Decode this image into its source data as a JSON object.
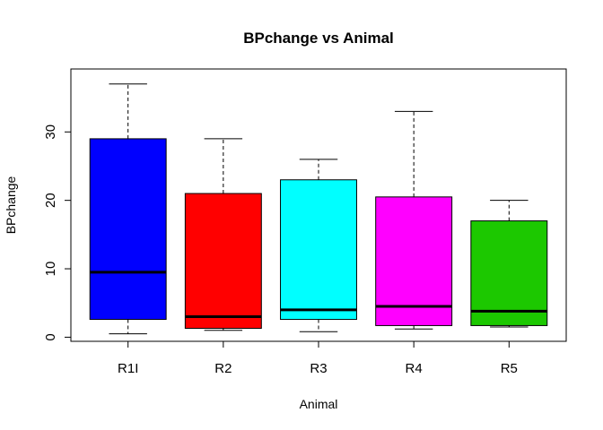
{
  "chart_data": {
    "type": "box",
    "title": "BPchange vs Animal",
    "xlabel": "Animal",
    "ylabel": "BPchange",
    "ylim": [
      -0.6,
      39.2
    ],
    "yticks": [
      0,
      10,
      20,
      30
    ],
    "categories": [
      "R1I",
      "R2",
      "R3",
      "R4",
      "R5"
    ],
    "boxes": [
      {
        "category": "R1I",
        "min": 0.5,
        "q1": 2.6,
        "median": 9.5,
        "q3": 29.0,
        "max": 37.0,
        "color": "#0000FF"
      },
      {
        "category": "R2",
        "min": 1.0,
        "q1": 1.3,
        "median": 3.0,
        "q3": 21.0,
        "max": 29.0,
        "color": "#FF0000"
      },
      {
        "category": "R3",
        "min": 0.8,
        "q1": 2.6,
        "median": 4.0,
        "q3": 23.0,
        "max": 26.0,
        "color": "#00FFFF"
      },
      {
        "category": "R4",
        "min": 1.2,
        "q1": 1.7,
        "median": 4.5,
        "q3": 20.5,
        "max": 33.0,
        "color": "#FF00FF"
      },
      {
        "category": "R5",
        "min": 1.5,
        "q1": 1.7,
        "median": 3.8,
        "q3": 17.0,
        "max": 20.0,
        "color": "#1CC800"
      }
    ],
    "grid": false,
    "legend": "none"
  }
}
